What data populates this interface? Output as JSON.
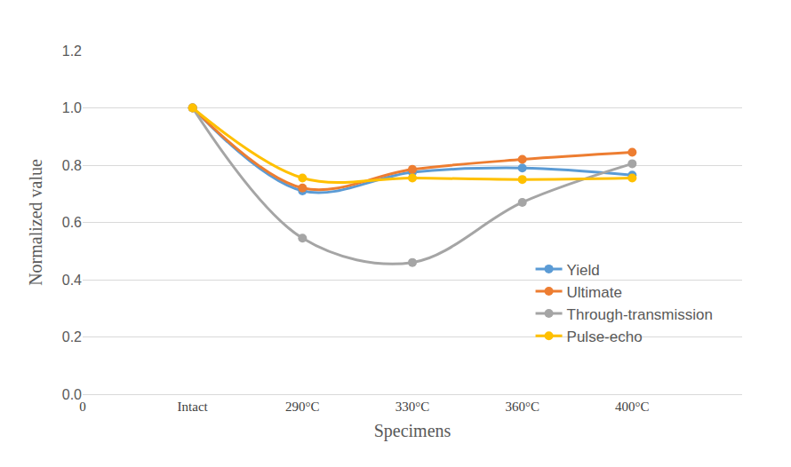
{
  "chart_data": {
    "type": "line",
    "x_label": "Specimens",
    "y_label": "Normalized value",
    "x": [
      1,
      2,
      3,
      4,
      5
    ],
    "xlim": [
      0,
      6
    ],
    "xticks": [
      0,
      {
        "value": 1,
        "label": "Intact"
      },
      {
        "value": 2,
        "label": "290°C"
      },
      {
        "value": 3,
        "label": "330°C"
      },
      {
        "value": 4,
        "label": "360°C"
      },
      {
        "value": 5,
        "label": "400°C"
      }
    ],
    "ylim": [
      0,
      1.2
    ],
    "yticks": [
      {
        "value": 0,
        "label": "0.0"
      },
      0.2,
      0.4,
      0.6,
      0.8,
      {
        "value": 1,
        "label": "1.0"
      },
      1.2
    ],
    "grid": true,
    "legend": "right",
    "line_style": "smooth",
    "marker": "circle",
    "series": [
      {
        "name": "Yield",
        "color": "#5B9BD5",
        "values": [
          1.0,
          0.71,
          0.775,
          0.79,
          0.765
        ]
      },
      {
        "name": "Ultimate",
        "color": "#ED7D31",
        "values": [
          1.0,
          0.72,
          0.785,
          0.82,
          0.845
        ]
      },
      {
        "name": "Through-transmission",
        "color": "#A5A5A5",
        "values": [
          1.0,
          0.545,
          0.46,
          0.67,
          0.805
        ]
      },
      {
        "name": "Pulse-echo",
        "color": "#FFC000",
        "values": [
          1.0,
          0.755,
          0.755,
          0.75,
          0.755
        ]
      }
    ]
  }
}
